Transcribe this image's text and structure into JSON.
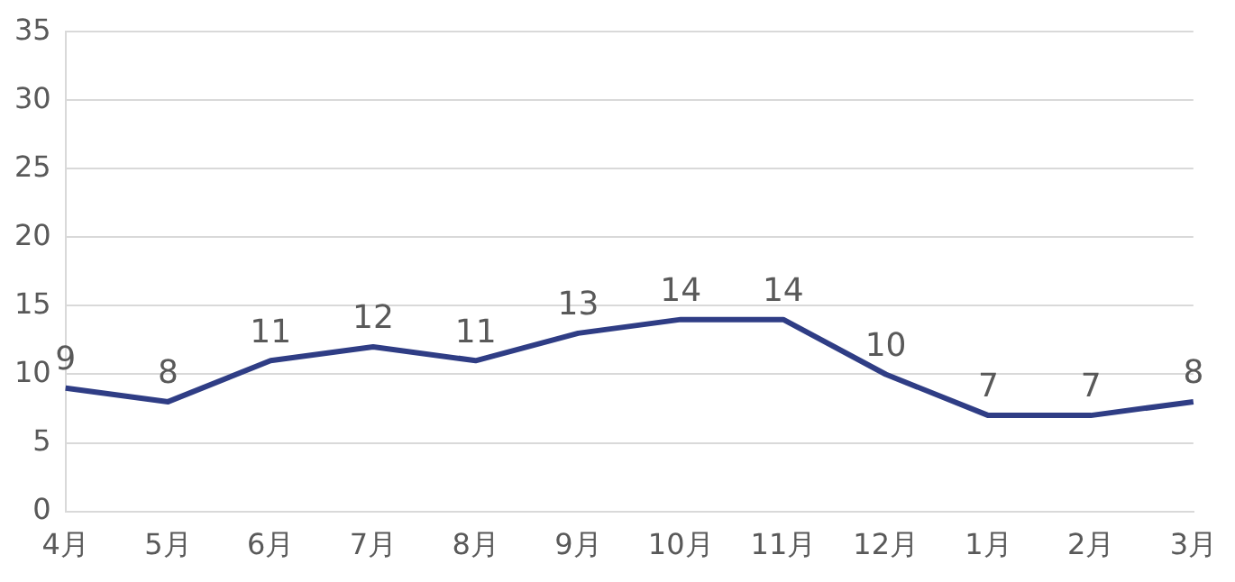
{
  "chart_data": {
    "type": "line",
    "categories": [
      "4月",
      "5月",
      "6月",
      "7月",
      "8月",
      "9月",
      "10月",
      "11月",
      "12月",
      "1月",
      "2月",
      "3月"
    ],
    "series": [
      {
        "color": "#2f3d85",
        "values": [
          9,
          8,
          11,
          12,
          11,
          13,
          14,
          14,
          10,
          7,
          7,
          8
        ]
      }
    ],
    "ylim": [
      0,
      35
    ],
    "yticks": [
      0,
      5,
      10,
      15,
      20,
      25,
      30,
      35
    ],
    "grid": "y",
    "data_labels": true,
    "marker": "none",
    "line_style": "solid",
    "legend": false
  }
}
